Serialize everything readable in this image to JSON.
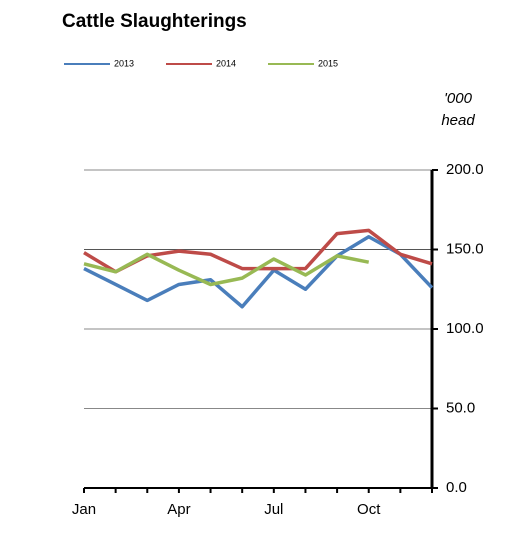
{
  "chart_data": {
    "type": "line",
    "title": "Cattle Slaughterings",
    "y2_label": [
      "'000",
      "head"
    ],
    "categories": [
      "Jan",
      null,
      null,
      "Apr",
      null,
      null,
      "Jul",
      null,
      null,
      "Oct",
      null,
      null
    ],
    "series": [
      {
        "name": "2013",
        "color": "#4a7ebb",
        "values": [
          138,
          128,
          118,
          128,
          131,
          114,
          137,
          125,
          146,
          158,
          147,
          126
        ]
      },
      {
        "name": "2014",
        "color": "#be4b48",
        "values": [
          148,
          136,
          146,
          149,
          147,
          138,
          138,
          138,
          160,
          162,
          147,
          141
        ]
      },
      {
        "name": "2015",
        "color": "#98b954",
        "values": [
          141,
          136,
          147,
          137,
          128,
          132,
          144,
          134,
          146,
          142,
          null,
          null
        ]
      }
    ],
    "ylim": [
      0,
      200
    ],
    "yticks": [
      {
        "value": 0,
        "label": "0.0"
      },
      {
        "value": 50,
        "label": "50.0"
      },
      {
        "value": 100,
        "label": "100.0"
      },
      {
        "value": 150,
        "label": "150.0"
      },
      {
        "value": 200,
        "label": "200.0"
      }
    ],
    "grid": true,
    "legend": "top"
  }
}
